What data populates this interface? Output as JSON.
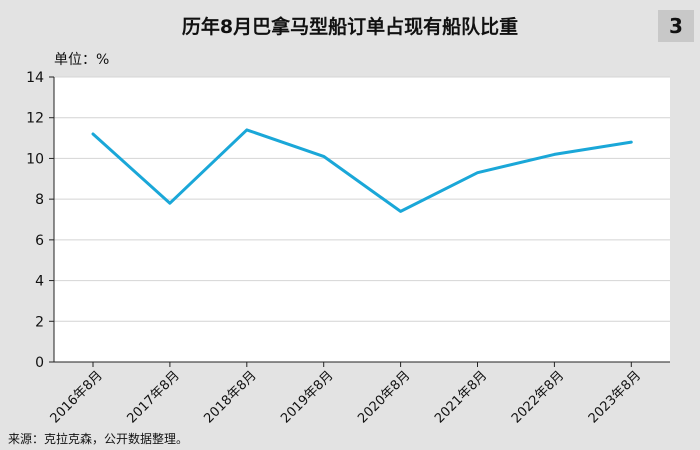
{
  "header": {
    "title": "历年8月巴拿马型船订单占现有船队比重",
    "badge": "3"
  },
  "chart_data": {
    "type": "line",
    "title": "历年8月巴拿马型船订单占现有船队比重",
    "unit_label": "单位：%",
    "categories": [
      "2016年8月",
      "2017年8月",
      "2018年8月",
      "2019年8月",
      "2020年8月",
      "2021年8月",
      "2022年8月",
      "2023年8月"
    ],
    "series": [
      {
        "values": [
          11.2,
          7.8,
          11.4,
          10.1,
          7.4,
          9.3,
          10.2,
          10.8
        ]
      }
    ],
    "ylim": [
      0,
      14
    ],
    "yticks": [
      0,
      2,
      4,
      6,
      8,
      10,
      12,
      14
    ],
    "grid": true,
    "line_color": "#1aa7d8"
  },
  "footer": {
    "source": "来源：克拉克森，公开数据整理。"
  }
}
